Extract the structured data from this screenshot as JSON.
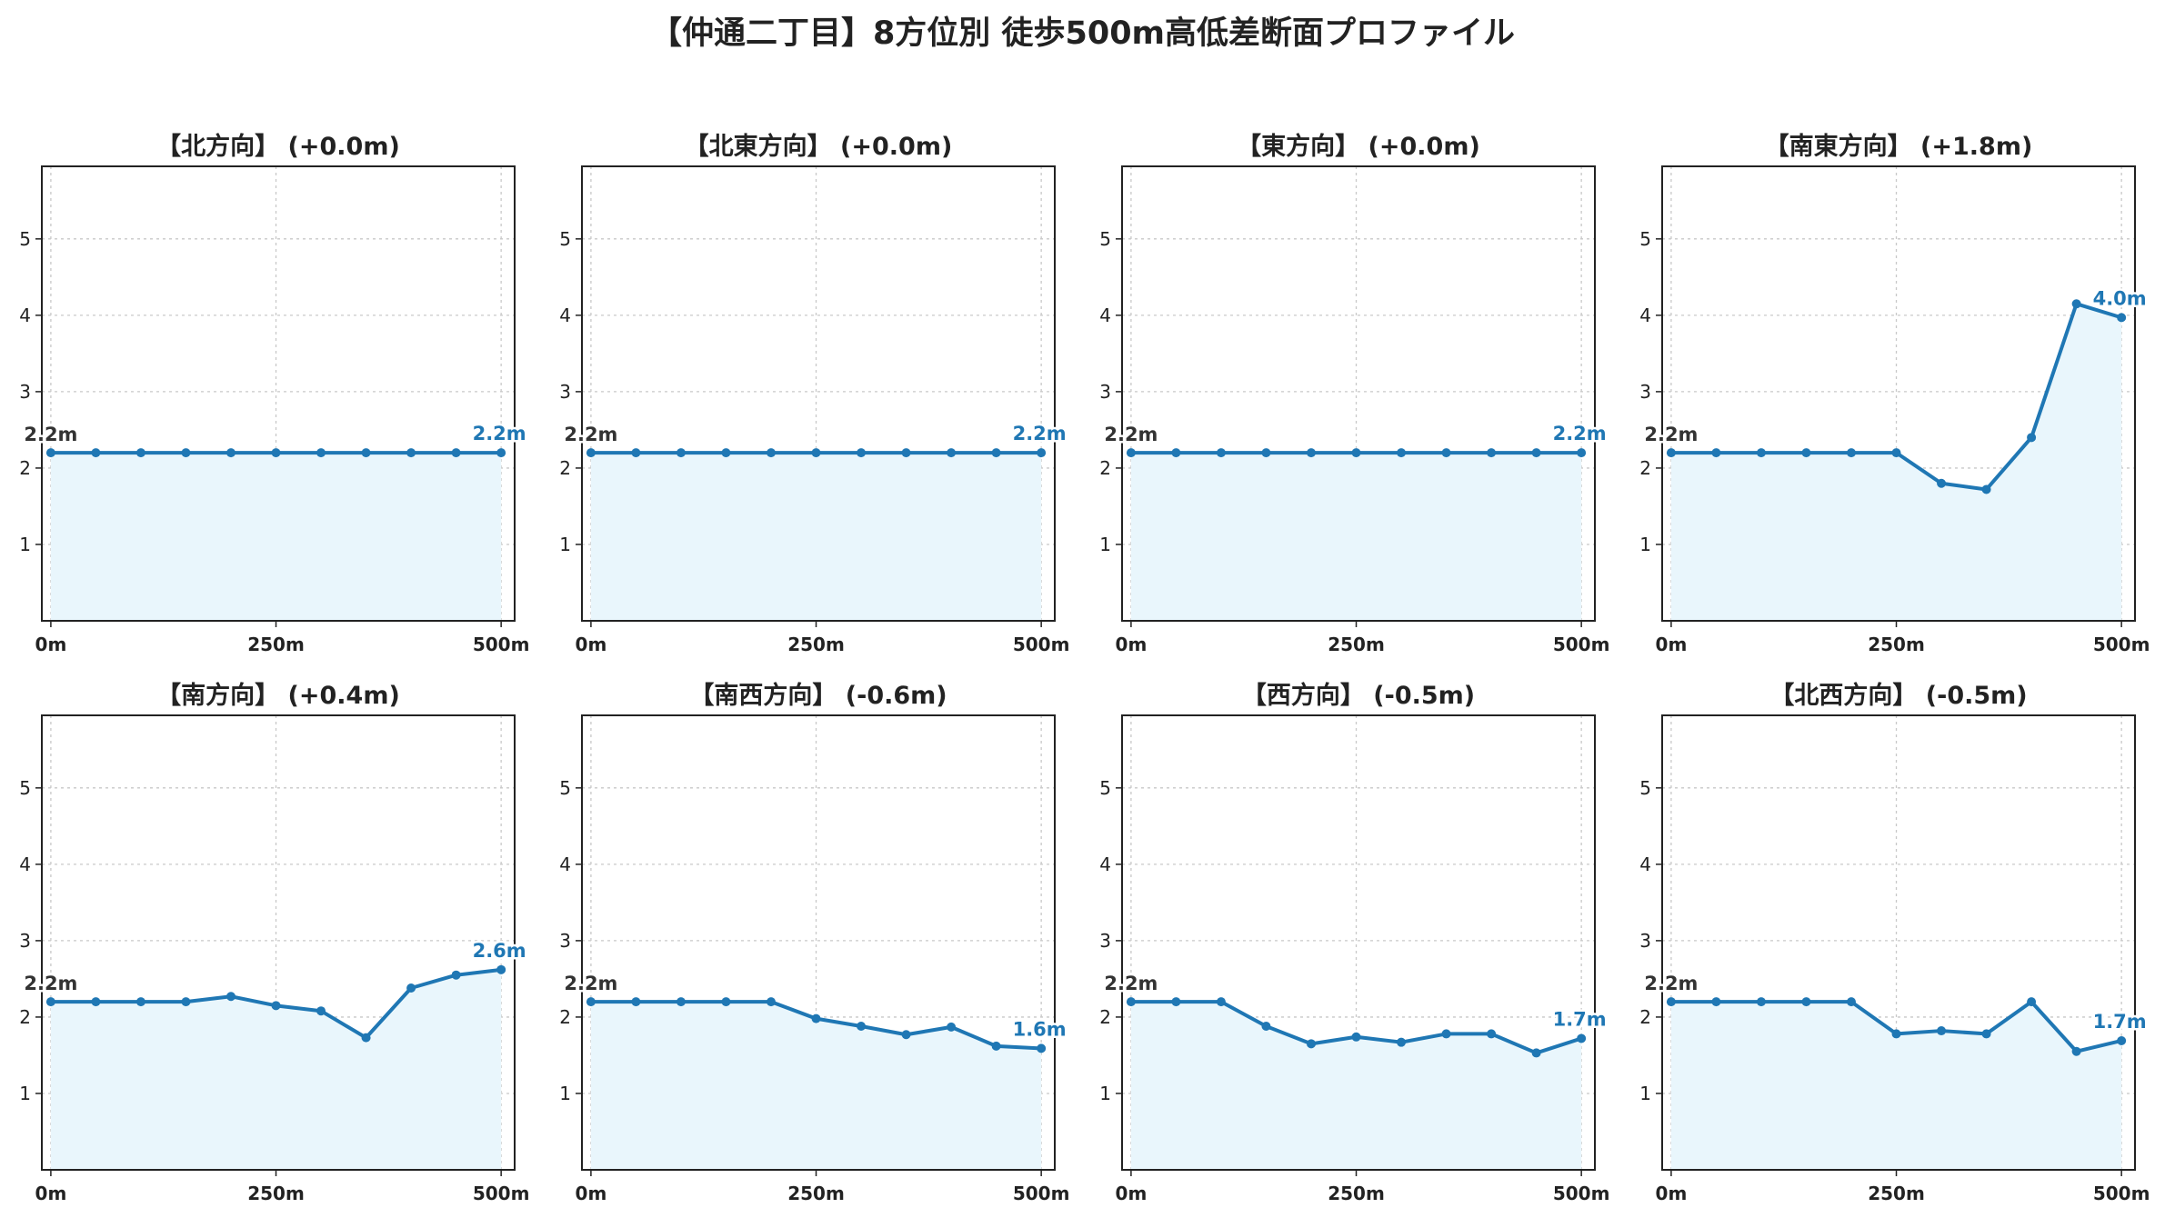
{
  "page": {
    "title": "【仲通二丁目】8方位別 徒歩500m高低差断面プロファイル"
  },
  "colors": {
    "line": "#1f77b4",
    "fill": "#e9f6fc",
    "grid": "#c8c8c8",
    "start_label": "#333333",
    "end_label": "#1f77b4"
  },
  "chart_data": [
    {
      "type": "area",
      "title": "【北方向】 (+0.0m)",
      "x": [
        0,
        50,
        100,
        150,
        200,
        250,
        300,
        350,
        400,
        450,
        500
      ],
      "y": [
        2.2,
        2.2,
        2.2,
        2.2,
        2.2,
        2.2,
        2.2,
        2.2,
        2.2,
        2.2,
        2.2
      ],
      "xticks": [
        "0m",
        "250m",
        "500m"
      ],
      "yticks": [
        1,
        2,
        3,
        4,
        5
      ],
      "xlim": [
        -10,
        515
      ],
      "ylim": [
        0,
        5.95
      ],
      "grid": true,
      "start_label": "2.2m",
      "end_label": "2.2m"
    },
    {
      "type": "area",
      "title": "【北東方向】 (+0.0m)",
      "x": [
        0,
        50,
        100,
        150,
        200,
        250,
        300,
        350,
        400,
        450,
        500
      ],
      "y": [
        2.2,
        2.2,
        2.2,
        2.2,
        2.2,
        2.2,
        2.2,
        2.2,
        2.2,
        2.2,
        2.2
      ],
      "xticks": [
        "0m",
        "250m",
        "500m"
      ],
      "yticks": [
        1,
        2,
        3,
        4,
        5
      ],
      "xlim": [
        -10,
        515
      ],
      "ylim": [
        0,
        5.95
      ],
      "grid": true,
      "start_label": "2.2m",
      "end_label": "2.2m"
    },
    {
      "type": "area",
      "title": "【東方向】 (+0.0m)",
      "x": [
        0,
        50,
        100,
        150,
        200,
        250,
        300,
        350,
        400,
        450,
        500
      ],
      "y": [
        2.2,
        2.2,
        2.2,
        2.2,
        2.2,
        2.2,
        2.2,
        2.2,
        2.2,
        2.2,
        2.2
      ],
      "xticks": [
        "0m",
        "250m",
        "500m"
      ],
      "yticks": [
        1,
        2,
        3,
        4,
        5
      ],
      "xlim": [
        -10,
        515
      ],
      "ylim": [
        0,
        5.95
      ],
      "grid": true,
      "start_label": "2.2m",
      "end_label": "2.2m"
    },
    {
      "type": "area",
      "title": "【南東方向】 (+1.8m)",
      "x": [
        0,
        50,
        100,
        150,
        200,
        250,
        300,
        350,
        400,
        450,
        500
      ],
      "y": [
        2.2,
        2.2,
        2.2,
        2.2,
        2.2,
        2.2,
        1.8,
        1.72,
        2.4,
        4.15,
        3.97
      ],
      "xticks": [
        "0m",
        "250m",
        "500m"
      ],
      "yticks": [
        1,
        2,
        3,
        4,
        5
      ],
      "xlim": [
        -10,
        515
      ],
      "ylim": [
        0,
        5.95
      ],
      "grid": true,
      "start_label": "2.2m",
      "end_label": "4.0m"
    },
    {
      "type": "area",
      "title": "【南方向】 (+0.4m)",
      "x": [
        0,
        50,
        100,
        150,
        200,
        250,
        300,
        350,
        400,
        450,
        500
      ],
      "y": [
        2.2,
        2.2,
        2.2,
        2.2,
        2.27,
        2.15,
        2.08,
        1.73,
        2.38,
        2.55,
        2.62
      ],
      "xticks": [
        "0m",
        "250m",
        "500m"
      ],
      "yticks": [
        1,
        2,
        3,
        4,
        5
      ],
      "xlim": [
        -10,
        515
      ],
      "ylim": [
        0,
        5.95
      ],
      "grid": true,
      "start_label": "2.2m",
      "end_label": "2.6m"
    },
    {
      "type": "area",
      "title": "【南西方向】 (-0.6m)",
      "x": [
        0,
        50,
        100,
        150,
        200,
        250,
        300,
        350,
        400,
        450,
        500
      ],
      "y": [
        2.2,
        2.2,
        2.2,
        2.2,
        2.2,
        1.98,
        1.88,
        1.77,
        1.87,
        1.62,
        1.59
      ],
      "xticks": [
        "0m",
        "250m",
        "500m"
      ],
      "yticks": [
        1,
        2,
        3,
        4,
        5
      ],
      "xlim": [
        -10,
        515
      ],
      "ylim": [
        0,
        5.95
      ],
      "grid": true,
      "start_label": "2.2m",
      "end_label": "1.6m"
    },
    {
      "type": "area",
      "title": "【西方向】 (-0.5m)",
      "x": [
        0,
        50,
        100,
        150,
        200,
        250,
        300,
        350,
        400,
        450,
        500
      ],
      "y": [
        2.2,
        2.2,
        2.2,
        1.88,
        1.65,
        1.74,
        1.67,
        1.78,
        1.78,
        1.53,
        1.72
      ],
      "xticks": [
        "0m",
        "250m",
        "500m"
      ],
      "yticks": [
        1,
        2,
        3,
        4,
        5
      ],
      "xlim": [
        -10,
        515
      ],
      "ylim": [
        0,
        5.95
      ],
      "grid": true,
      "start_label": "2.2m",
      "end_label": "1.7m"
    },
    {
      "type": "area",
      "title": "【北西方向】 (-0.5m)",
      "x": [
        0,
        50,
        100,
        150,
        200,
        250,
        300,
        350,
        400,
        450,
        500
      ],
      "y": [
        2.2,
        2.2,
        2.2,
        2.2,
        2.2,
        1.78,
        1.82,
        1.78,
        2.2,
        1.55,
        1.69
      ],
      "xticks": [
        "0m",
        "250m",
        "500m"
      ],
      "yticks": [
        1,
        2,
        3,
        4,
        5
      ],
      "xlim": [
        -10,
        515
      ],
      "ylim": [
        0,
        5.95
      ],
      "grid": true,
      "start_label": "2.2m",
      "end_label": "1.7m"
    }
  ]
}
